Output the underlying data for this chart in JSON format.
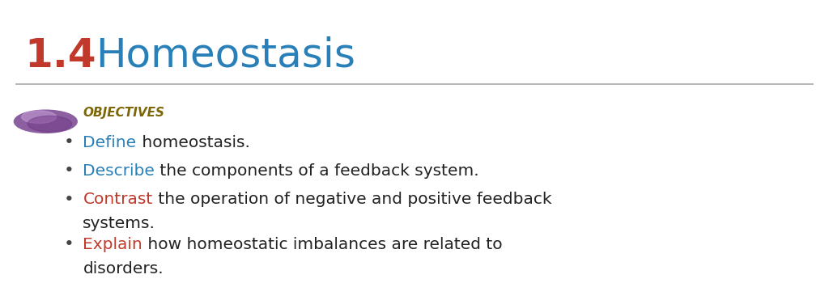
{
  "title_number": "1.4",
  "title_text": "Homeostasis",
  "title_number_color": "#c0392b",
  "title_text_color": "#2980b9",
  "title_fontsize": 36,
  "separator_color": "#aaaaaa",
  "objectives_label": "OBJECTIVES",
  "objectives_color": "#8B6914",
  "objectives_fontsize": 11,
  "bullet_color": "#555555",
  "bullet_points": [
    {
      "keyword": "Define",
      "keyword_color": "#2980b9",
      "rest": " homeostasis.",
      "rest_color": "#222222",
      "continuation": null
    },
    {
      "keyword": "Describe",
      "keyword_color": "#2980b9",
      "rest": " the components of a feedback system.",
      "rest_color": "#222222",
      "continuation": null
    },
    {
      "keyword": "Contrast",
      "keyword_color": "#c0392b",
      "rest": " the operation of negative and positive feedback",
      "rest_color": "#222222",
      "continuation": "systems."
    },
    {
      "keyword": "Explain",
      "keyword_color": "#c0392b",
      "rest": " how homeostatic imbalances are related to",
      "rest_color": "#222222",
      "continuation": "disorders."
    }
  ],
  "bg_color": "#ffffff",
  "font_family": "DejaVu Sans",
  "bullet_fontsize": 14.5,
  "continuation_fontsize": 14.5,
  "globe_colors": [
    "#9b59b6",
    "#7d3c98",
    "#d7bde2"
  ],
  "figsize": [
    10.24,
    3.71
  ],
  "dpi": 100
}
